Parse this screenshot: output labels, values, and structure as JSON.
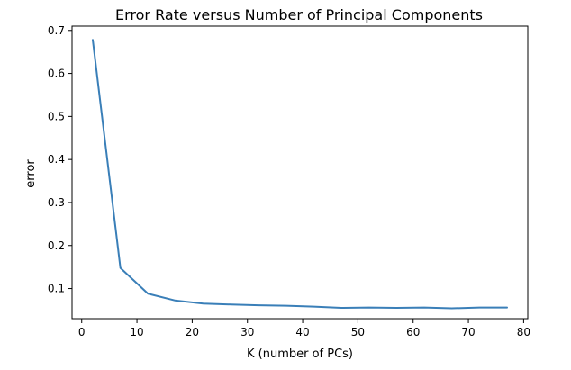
{
  "chart_data": {
    "type": "line",
    "title": "Error Rate versus Number of Principal Components",
    "xlabel": "K (number of PCs)",
    "ylabel": "error",
    "xlim": [
      -1.75,
      80.75
    ],
    "ylim": [
      0.03,
      0.71
    ],
    "xticks": [
      0,
      10,
      20,
      30,
      40,
      50,
      60,
      70,
      80
    ],
    "yticks": [
      0.1,
      0.2,
      0.3,
      0.4,
      0.5,
      0.6,
      0.7
    ],
    "xtick_labels": [
      "0",
      "10",
      "20",
      "30",
      "40",
      "50",
      "60",
      "70",
      "80"
    ],
    "ytick_labels": [
      "0.1",
      "0.2",
      "0.3",
      "0.4",
      "0.5",
      "0.6",
      "0.7"
    ],
    "grid": false,
    "series": [
      {
        "color": "#3a7fb8",
        "x": [
          2,
          7,
          12,
          17,
          22,
          27,
          32,
          37,
          42,
          47,
          52,
          57,
          62,
          67,
          72,
          77
        ],
        "y": [
          0.678,
          0.148,
          0.088,
          0.072,
          0.065,
          0.063,
          0.061,
          0.06,
          0.058,
          0.055,
          0.056,
          0.055,
          0.056,
          0.054,
          0.056,
          0.056
        ]
      }
    ]
  }
}
